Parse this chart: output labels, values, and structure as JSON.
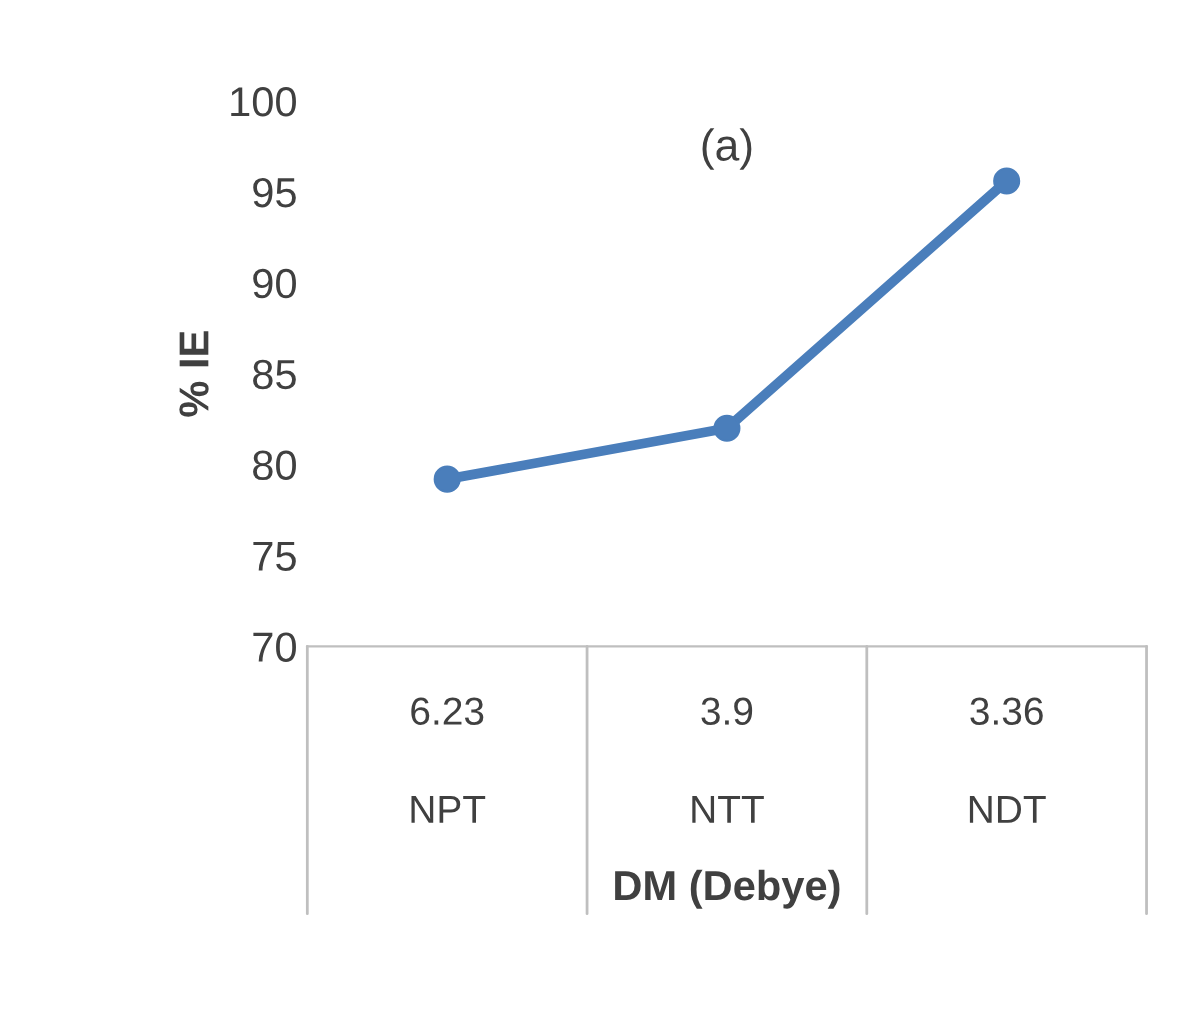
{
  "chart_data": {
    "type": "line",
    "title": "(a)",
    "xlabel": "DM (Debye)",
    "ylabel": "% IE",
    "categories": [
      "6.23\nNPT",
      "3.9\nNTT",
      "3.36\nNDT"
    ],
    "series": [
      {
        "color": "#4a7ebb",
        "values": [
          79.2,
          82.0,
          95.6
        ]
      }
    ],
    "ylim": [
      70,
      100
    ],
    "yticks": [
      70,
      75,
      80,
      85,
      90,
      95,
      100
    ],
    "marker": "circle",
    "line_style": "solid",
    "grid": false,
    "legend": false
  }
}
